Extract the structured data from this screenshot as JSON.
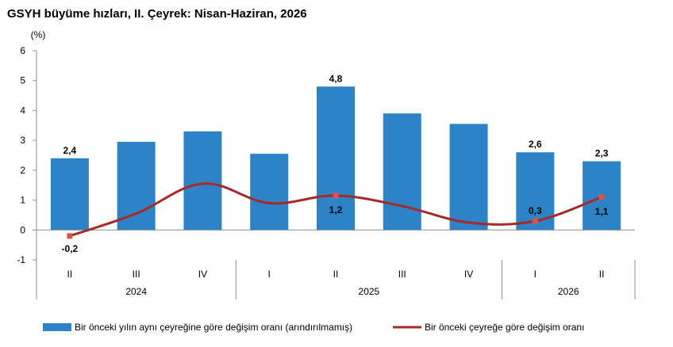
{
  "title": "GSYH büyüme hızları, II. Çeyrek: Nisan-Haziran, 2026",
  "chart_data": {
    "type": "bar",
    "title": "GSYH büyüme hızları, II. Çeyrek: Nisan-Haziran, 2026",
    "ylabel": "(%)",
    "xlabel": "",
    "ylim": [
      -1,
      6
    ],
    "yticks": [
      "-1",
      "0",
      "1",
      "2",
      "3",
      "4",
      "5",
      "6"
    ],
    "categories": [
      "II",
      "III",
      "IV",
      "I",
      "II",
      "III",
      "IV",
      "I",
      "II"
    ],
    "year_groups": [
      {
        "label": "2024",
        "count": 3
      },
      {
        "label": "2025",
        "count": 4
      },
      {
        "label": "2026",
        "count": 2
      }
    ],
    "grid": false,
    "legend_position": "bottom",
    "series": [
      {
        "name": "Bir önceki yılın aynı çeyreğine göre değişim oranı (arındırılmamış)",
        "type": "bar",
        "color": "#2e83c7",
        "values": [
          2.4,
          2.95,
          3.3,
          2.55,
          4.8,
          3.9,
          3.55,
          2.6,
          2.3
        ],
        "data_labels": [
          "2,4",
          "",
          "",
          "",
          "4,8",
          "",
          "",
          "2,6",
          "2,3"
        ]
      },
      {
        "name": "Bir önceki çeyreğe göre değişim oranı",
        "type": "line",
        "color": "#a52a2a",
        "values": [
          -0.2,
          0.55,
          1.55,
          0.9,
          1.15,
          0.8,
          0.25,
          0.3,
          1.1
        ],
        "data_labels": [
          "-0,2",
          "",
          "",
          "",
          "1,2",
          "",
          "",
          "0,3",
          "1,1"
        ]
      }
    ]
  }
}
